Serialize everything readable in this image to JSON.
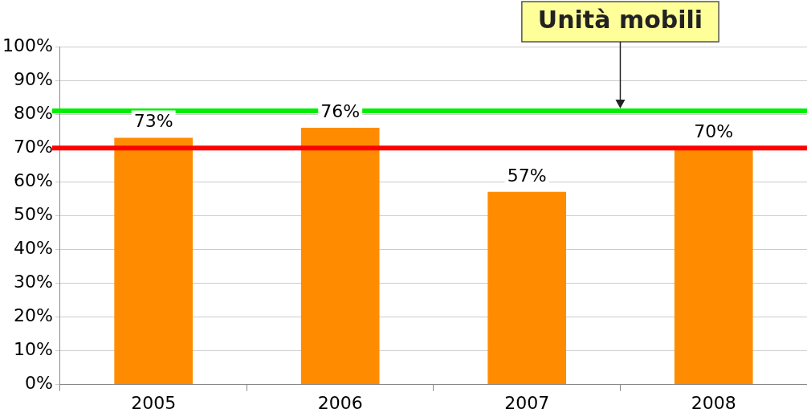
{
  "chart_data": {
    "type": "bar",
    "categories": [
      "2005",
      "2006",
      "2007",
      "2008"
    ],
    "values": [
      73,
      76,
      57,
      70
    ],
    "color": "#ff8c00",
    "value_labels": [
      "73%",
      "76%",
      "57%",
      "70%"
    ],
    "ylim": [
      0,
      100
    ],
    "yticks": [
      {
        "value": 0,
        "label": "0%"
      },
      {
        "value": 10,
        "label": "10%"
      },
      {
        "value": 20,
        "label": "20%"
      },
      {
        "value": 30,
        "label": "30%"
      },
      {
        "value": 40,
        "label": "40%"
      },
      {
        "value": 50,
        "label": "50%"
      },
      {
        "value": 60,
        "label": "60%"
      },
      {
        "value": 70,
        "label": "70%"
      },
      {
        "value": 80,
        "label": "80%"
      },
      {
        "value": 90,
        "label": "90%"
      },
      {
        "value": 100,
        "label": "100%"
      }
    ],
    "grid": "y",
    "legend": false,
    "ref_lines": [
      {
        "axis": "y",
        "value": 81,
        "color": "#00ee00",
        "label": "Unità mobili"
      },
      {
        "axis": "y",
        "value": 70,
        "color": "#ff0000"
      }
    ]
  }
}
